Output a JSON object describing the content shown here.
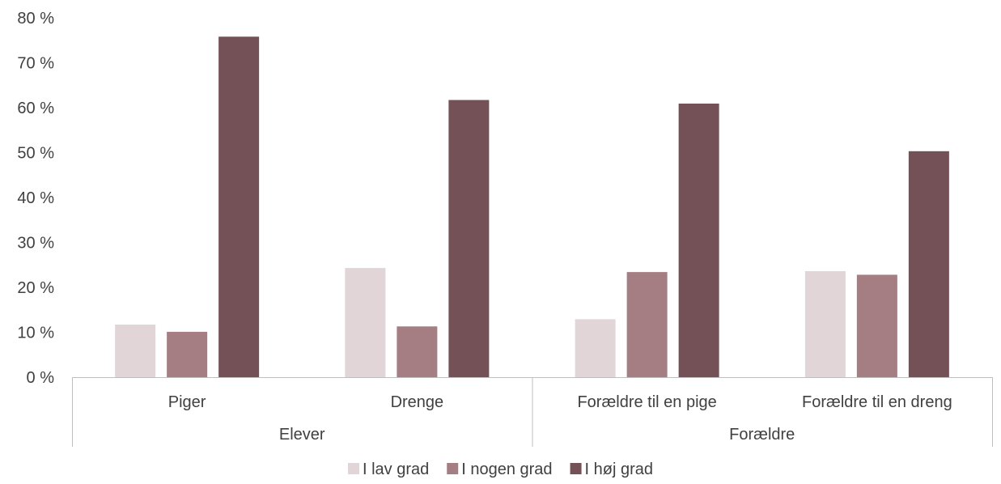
{
  "chart_data": {
    "type": "bar",
    "groups": [
      {
        "label": "Elever",
        "categories": [
          "Piger",
          "Drenge"
        ]
      },
      {
        "label": "Forældre",
        "categories": [
          "Forældre til en pige",
          "Forældre til en dreng"
        ]
      }
    ],
    "categories": [
      "Piger",
      "Drenge",
      "Forældre til en pige",
      "Forældre til en dreng"
    ],
    "series": [
      {
        "name": "I lav grad",
        "color": "#e1d5d8",
        "values": [
          11.7,
          24.3,
          12.9,
          23.6
        ]
      },
      {
        "name": "I nogen grad",
        "color": "#a57e84",
        "values": [
          10.1,
          11.3,
          23.4,
          22.8
        ]
      },
      {
        "name": "I høj grad",
        "color": "#735157",
        "values": [
          75.8,
          61.7,
          60.9,
          50.3
        ]
      }
    ],
    "yticks": [
      "0 %",
      "10 %",
      "20 %",
      "30 %",
      "40 %",
      "50 %",
      "60 %",
      "70 %",
      "80 %"
    ],
    "ylim": [
      0,
      80
    ],
    "grid": false,
    "legend_position": "bottom",
    "axis_color": "#bfbfbf",
    "text_color": "#404040"
  }
}
